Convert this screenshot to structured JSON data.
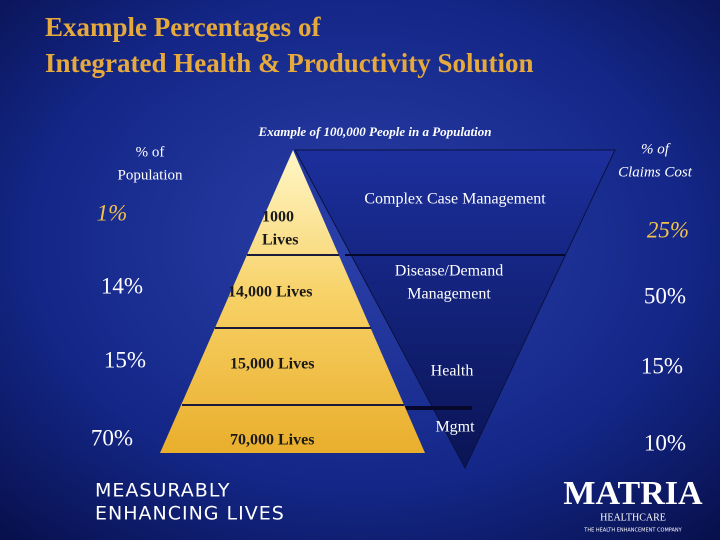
{
  "title": [
    "Example Percentages of",
    "Integrated  Health & Productivity Solution"
  ],
  "subtitle": "Example of 100,000 People in a Population",
  "population_header": [
    "% of",
    "Population"
  ],
  "claims_header": [
    "% of",
    "Claims Cost"
  ],
  "tiers": [
    {
      "population_pct": "1%",
      "lives": [
        "1000",
        "Lives"
      ],
      "program": [
        "Complex Case Management"
      ],
      "claims_pct": "25%"
    },
    {
      "population_pct": "14%",
      "lives": [
        "14,000 Lives"
      ],
      "program": [
        "Disease/Demand",
        "Management"
      ],
      "claims_pct": "50%"
    },
    {
      "population_pct": "15%",
      "lives": [
        "15,000 Lives"
      ],
      "program": [
        "Health"
      ],
      "claims_pct": "15%"
    },
    {
      "population_pct": "70%",
      "lives": [
        "70,000 Lives"
      ],
      "program": [
        "Mgmt"
      ],
      "claims_pct": "10%"
    }
  ],
  "logo": {
    "tagline": [
      "MEASURABLY",
      "ENHANCING LIVES"
    ],
    "brand": "MATRIA",
    "brand_sub": "HEALTHCARE",
    "brand_tag": "THE HEALTH ENHANCEMENT COMPANY"
  }
}
